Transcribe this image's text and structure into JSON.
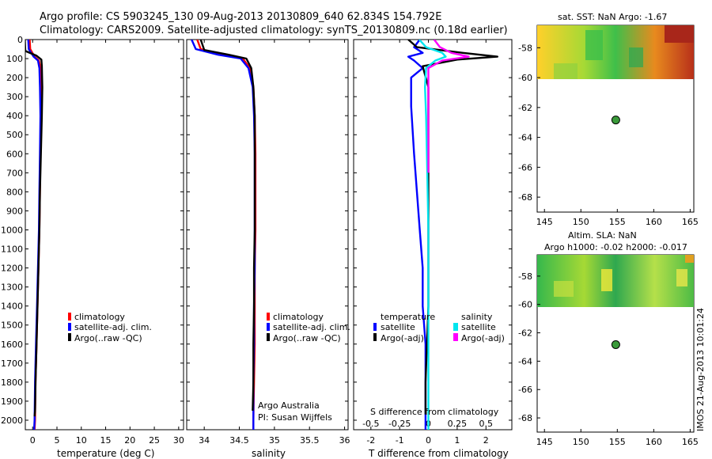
{
  "header": {
    "line1": "Argo profile: CS 5903245_130 09-Aug-2013 20130809_640 62.834S 154.792E",
    "line2": "Climatology: CARS2009. Satellite-adjusted climatology: synTS_20130809.nc (0.18d earlier)"
  },
  "credit": "IMOS 21-Aug-2013 10:01:24",
  "colors": {
    "climatology": "#ff0000",
    "satellite": "#0000ff",
    "argo": "#000000",
    "sal_satellite": "#00e5ee",
    "sal_argo": "#ff00ff"
  },
  "chart_data": [
    {
      "type": "line",
      "name": "temperature",
      "xlabel": "temperature (deg C)",
      "xlim": [
        -1.5,
        31
      ],
      "xticks": [
        0,
        5,
        10,
        15,
        20,
        25,
        30
      ],
      "ylim": [
        2050,
        0
      ],
      "yticks": [
        0,
        100,
        200,
        300,
        400,
        500,
        600,
        700,
        800,
        900,
        1000,
        1100,
        1200,
        1300,
        1400,
        1500,
        1600,
        1700,
        1800,
        1900,
        2000
      ],
      "legend": [
        "climatology",
        "satellite-adj. clim.",
        "Argo(..raw -QC)"
      ],
      "series": [
        {
          "name": "climatology",
          "color": "#ff0000",
          "x": [
            -0.6,
            -0.5,
            0.4,
            1.3,
            1.6,
            1.7,
            1.7,
            1.6,
            1.5,
            1.4,
            1.2,
            1.0,
            0.8,
            0.6,
            0.5,
            0.4
          ],
          "y": [
            0,
            50,
            90,
            110,
            150,
            250,
            400,
            600,
            800,
            1000,
            1200,
            1400,
            1600,
            1800,
            2000,
            2050
          ]
        },
        {
          "name": "satellite",
          "color": "#0000ff",
          "x": [
            -0.9,
            -0.8,
            0.2,
            1.1,
            1.4,
            1.5,
            1.6,
            1.5,
            1.4,
            1.3,
            1.1,
            0.9,
            0.7,
            0.5,
            0.4,
            0.3
          ],
          "y": [
            0,
            50,
            90,
            110,
            150,
            250,
            400,
            600,
            800,
            1000,
            1200,
            1400,
            1600,
            1800,
            2000,
            2050
          ]
        },
        {
          "name": "argo",
          "color": "#000000",
          "x": [
            -1.6,
            -1.5,
            0.8,
            1.8,
            1.9,
            2.0,
            1.9,
            1.7,
            1.5,
            1.4,
            1.2,
            1.0,
            0.8,
            0.6,
            0.5,
            0.4
          ],
          "y": [
            0,
            60,
            85,
            105,
            140,
            250,
            400,
            600,
            800,
            1000,
            1200,
            1400,
            1600,
            1800,
            1950,
            1980
          ]
        }
      ]
    },
    {
      "type": "line",
      "name": "salinity",
      "xlabel": "salinity",
      "xlim": [
        33.75,
        36.05
      ],
      "xticks": [
        34,
        34.5,
        35,
        35.5,
        36
      ],
      "ylim": [
        2050,
        0
      ],
      "legend": [
        "climatology",
        "satellite-adj. clim.",
        "Argo(..raw -QC)"
      ],
      "annotation": [
        "Argo Australia",
        "PI: Susan Wijffels"
      ],
      "series": [
        {
          "name": "climatology",
          "color": "#ff0000",
          "x": [
            33.9,
            33.95,
            34.25,
            34.55,
            34.65,
            34.7,
            34.72,
            34.73,
            34.73,
            34.73,
            34.72,
            34.72,
            34.72,
            34.71,
            34.7,
            34.7
          ],
          "y": [
            0,
            50,
            80,
            100,
            150,
            250,
            400,
            600,
            800,
            1000,
            1200,
            1400,
            1600,
            1800,
            2000,
            2050
          ]
        },
        {
          "name": "satellite",
          "color": "#0000ff",
          "x": [
            33.82,
            33.88,
            34.2,
            34.52,
            34.63,
            34.69,
            34.71,
            34.72,
            34.72,
            34.72,
            34.72,
            34.71,
            34.71,
            34.7,
            34.7,
            34.7
          ],
          "y": [
            0,
            50,
            80,
            100,
            150,
            250,
            400,
            600,
            800,
            1000,
            1200,
            1400,
            1600,
            1800,
            2000,
            2050
          ]
        },
        {
          "name": "argo",
          "color": "#000000",
          "x": [
            33.95,
            34.0,
            34.35,
            34.6,
            34.67,
            34.7,
            34.72,
            34.72,
            34.72,
            34.72,
            34.71,
            34.71,
            34.7,
            34.7,
            34.69
          ],
          "y": [
            0,
            55,
            80,
            100,
            150,
            250,
            400,
            600,
            800,
            1000,
            1200,
            1400,
            1600,
            1800,
            1950
          ]
        }
      ]
    },
    {
      "type": "line",
      "name": "differences",
      "xlabel": "T difference from climatology",
      "xlim": [
        -2.6,
        2.9
      ],
      "xticks": [
        -2,
        -1,
        0,
        1,
        2
      ],
      "top_axis_label": "S difference from climatology",
      "top_ticks": [
        -0.5,
        -0.25,
        0,
        0.25,
        0.5
      ],
      "top_xlim": [
        -0.65,
        0.725
      ],
      "ylim": [
        2050,
        0
      ],
      "legend_headers": [
        "temperature",
        "salinity"
      ],
      "legend_left": [
        "satellite",
        "Argo(-adj)"
      ],
      "legend_right": [
        "satellite",
        "Argo(-adj)"
      ],
      "series": [
        {
          "name": "T satellite",
          "axis": "T",
          "color": "#0000ff",
          "x": [
            -0.3,
            -0.5,
            -0.2,
            -0.7,
            -0.5,
            -0.2,
            -0.6,
            -0.6,
            -0.5,
            -0.4,
            -0.3,
            -0.2,
            -0.2,
            -0.1,
            -0.1,
            -0.1,
            -0.1
          ],
          "y": [
            0,
            40,
            70,
            90,
            110,
            150,
            200,
            350,
            600,
            800,
            1000,
            1200,
            1400,
            1600,
            1800,
            2000,
            2050
          ]
        },
        {
          "name": "T argo",
          "axis": "T",
          "color": "#000000",
          "x": [
            -0.7,
            -0.4,
            1.2,
            2.4,
            1.0,
            -0.2,
            0.0,
            0.0,
            0.0,
            0.0,
            0.0,
            -0.1,
            -0.1
          ],
          "y": [
            0,
            40,
            70,
            90,
            105,
            140,
            250,
            400,
            700,
            1000,
            1400,
            1800,
            1970
          ]
        },
        {
          "name": "S satellite",
          "axis": "S",
          "color": "#00e5ee",
          "x": [
            -0.08,
            -0.02,
            0.12,
            0.15,
            0.06,
            -0.02,
            -0.03,
            -0.02,
            -0.01,
            0.0,
            0.0,
            0.0
          ],
          "y": [
            0,
            40,
            70,
            90,
            110,
            150,
            250,
            400,
            700,
            1000,
            1500,
            2050
          ]
        },
        {
          "name": "S argo",
          "axis": "S",
          "color": "#ff00ff",
          "x": [
            0.05,
            0.1,
            0.2,
            0.35,
            0.12,
            0.0,
            0.0,
            0.0,
            0.0
          ],
          "y": [
            0,
            40,
            70,
            90,
            110,
            150,
            250,
            400,
            700
          ]
        }
      ]
    },
    {
      "type": "heatmap",
      "name": "sst-map",
      "title": "sat. SST: NaN Argo: -1.67",
      "xlim": [
        144,
        165.5
      ],
      "ylim": [
        -69,
        -56.5
      ],
      "xticks": [
        145,
        150,
        155,
        160,
        165
      ],
      "yticks": [
        -58,
        -60,
        -62,
        -64,
        -66,
        -68
      ],
      "data_lat_range": [
        -60,
        -56.5
      ],
      "marker": {
        "lon": 154.792,
        "lat": -62.834
      }
    },
    {
      "type": "heatmap",
      "name": "sla-map",
      "title": "Altim. SLA: NaN",
      "subtitle": "Argo h1000: -0.02 h2000: -0.017",
      "xlim": [
        144,
        165.5
      ],
      "ylim": [
        -69,
        -56.5
      ],
      "xticks": [
        145,
        150,
        155,
        160,
        165
      ],
      "yticks": [
        -58,
        -60,
        -62,
        -64,
        -66,
        -68
      ],
      "data_lat_range": [
        -60,
        -56.5
      ],
      "marker": {
        "lon": 154.792,
        "lat": -62.834
      }
    }
  ]
}
